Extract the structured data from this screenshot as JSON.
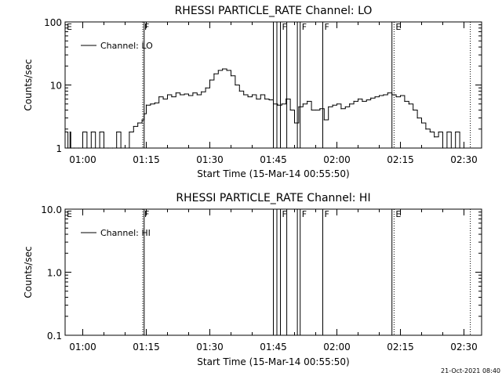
{
  "chart_data": [
    {
      "type": "line",
      "title": "RHESSI PARTICLE_RATE Channel: LO",
      "xlabel": "Start Time (15-Mar-14 00:55:50)",
      "ylabel": "Counts/sec",
      "y_scale": "log",
      "ylim": [
        1,
        100
      ],
      "xlim": [
        "00:55:50",
        "02:34:10"
      ],
      "y_ticks": [
        "1",
        "10",
        "100"
      ],
      "x_ticks": [
        "01:00",
        "01:15",
        "01:30",
        "01:45",
        "02:00",
        "02:15",
        "02:30"
      ],
      "legend": {
        "position": "top-left",
        "entries": [
          "Channel: LO"
        ]
      },
      "series": [
        {
          "name": "Channel: LO",
          "x": [
            "00:55:50",
            "00:56:00",
            "00:56:30",
            "00:57:00",
            "00:57:10",
            "00:58:00",
            "00:59:00",
            "01:00:00",
            "01:01:00",
            "01:02:00",
            "01:03:00",
            "01:04:00",
            "01:05:00",
            "01:06:00",
            "01:07:00",
            "01:08:00",
            "01:09:00",
            "01:10:00",
            "01:11:00",
            "01:12:00",
            "01:13:00",
            "01:14:00",
            "01:14:30",
            "01:15:00",
            "01:16:00",
            "01:17:00",
            "01:18:00",
            "01:19:00",
            "01:20:00",
            "01:21:00",
            "01:22:00",
            "01:23:00",
            "01:24:00",
            "01:25:00",
            "01:26:00",
            "01:27:00",
            "01:28:00",
            "01:29:00",
            "01:30:00",
            "01:31:00",
            "01:32:00",
            "01:33:00",
            "01:34:00",
            "01:35:00",
            "01:36:00",
            "01:37:00",
            "01:38:00",
            "01:39:00",
            "01:40:00",
            "01:41:00",
            "01:42:00",
            "01:43:00",
            "01:44:00",
            "01:45:00",
            "01:46:00",
            "01:47:00",
            "01:48:00",
            "01:49:00",
            "01:50:00",
            "01:51:00",
            "01:52:00",
            "01:53:00",
            "01:54:00",
            "01:55:00",
            "01:56:00",
            "01:57:00",
            "01:58:00",
            "01:59:00",
            "02:00:00",
            "02:01:00",
            "02:02:00",
            "02:03:00",
            "02:04:00",
            "02:05:00",
            "02:06:00",
            "02:07:00",
            "02:08:00",
            "02:09:00",
            "02:10:00",
            "02:11:00",
            "02:12:00",
            "02:13:00",
            "02:14:00",
            "02:15:00",
            "02:16:00",
            "02:17:00",
            "02:18:00",
            "02:19:00",
            "02:20:00",
            "02:21:00",
            "02:22:00",
            "02:23:00",
            "02:24:00",
            "02:25:00",
            "02:26:00",
            "02:27:00",
            "02:28:00",
            "02:29:00",
            "02:30:00"
          ],
          "y": [
            1.8,
            1.8,
            1,
            1.8,
            1,
            1,
            1,
            1.8,
            1,
            1.8,
            1,
            1.8,
            1,
            1,
            1,
            1.8,
            1,
            1,
            1.8,
            2.2,
            2.5,
            2.8,
            3.5,
            4.8,
            5,
            5.2,
            6.5,
            6,
            7,
            6.5,
            7.5,
            7,
            7.2,
            6.8,
            7.5,
            7,
            7.8,
            9,
            12,
            15,
            17,
            18,
            17,
            14,
            10,
            8,
            7,
            6.5,
            7,
            6,
            7,
            6,
            5.8,
            5,
            4.8,
            5,
            6,
            4,
            2.5,
            4.5,
            5,
            5.5,
            4,
            4,
            4.2,
            2.8,
            4.5,
            4.8,
            5,
            4.2,
            4.5,
            5,
            5.5,
            6,
            5.5,
            5.8,
            6.2,
            6.5,
            6.8,
            7,
            7.5,
            7,
            6.5,
            6.8,
            5.5,
            5,
            4,
            3,
            2.5,
            2,
            1.8,
            1.5,
            1.8,
            1,
            1.8,
            1,
            1.8,
            1,
            1
          ]
        }
      ],
      "vertical_markers": [
        {
          "time": "01:14:10",
          "label": "F",
          "style": "dotted"
        },
        {
          "time": "01:14:30",
          "label": "",
          "style": "solid"
        },
        {
          "time": "01:45:00",
          "label": "",
          "style": "solid"
        },
        {
          "time": "01:45:50",
          "label": "",
          "style": "solid"
        },
        {
          "time": "01:46:40",
          "label": "F",
          "style": "solid"
        },
        {
          "time": "01:48:10",
          "label": "",
          "style": "solid"
        },
        {
          "time": "01:50:40",
          "label": "",
          "style": "solid"
        },
        {
          "time": "01:51:20",
          "label": "F",
          "style": "solid"
        },
        {
          "time": "01:56:40",
          "label": "F",
          "style": "solid"
        },
        {
          "time": "02:13:00",
          "label": "",
          "style": "solid"
        },
        {
          "time": "02:13:30",
          "label": "E",
          "style": "dotted"
        },
        {
          "time": "02:31:30",
          "label": "",
          "style": "dotted"
        }
      ],
      "start_marker_label": "E"
    },
    {
      "type": "line",
      "title": "RHESSI PARTICLE_RATE Channel: HI",
      "xlabel": "Start Time (15-Mar-14 00:55:50)",
      "ylabel": "Counts/sec",
      "y_scale": "log",
      "ylim": [
        0.1,
        10.0
      ],
      "xlim": [
        "00:55:50",
        "02:34:10"
      ],
      "y_ticks": [
        "0.1",
        "1.0",
        "10.0"
      ],
      "x_ticks": [
        "01:00",
        "01:15",
        "01:30",
        "01:45",
        "02:00",
        "02:15",
        "02:30"
      ],
      "legend": {
        "position": "top-left",
        "entries": [
          "Channel: HI"
        ]
      },
      "series": [
        {
          "name": "Channel: HI",
          "x": [],
          "y": []
        }
      ],
      "vertical_markers": [
        {
          "time": "01:14:10",
          "label": "F",
          "style": "dotted"
        },
        {
          "time": "01:14:30",
          "label": "",
          "style": "solid"
        },
        {
          "time": "01:45:00",
          "label": "",
          "style": "solid"
        },
        {
          "time": "01:45:50",
          "label": "",
          "style": "solid"
        },
        {
          "time": "01:46:40",
          "label": "F",
          "style": "solid"
        },
        {
          "time": "01:48:10",
          "label": "",
          "style": "solid"
        },
        {
          "time": "01:50:40",
          "label": "",
          "style": "solid"
        },
        {
          "time": "01:51:20",
          "label": "F",
          "style": "solid"
        },
        {
          "time": "01:56:40",
          "label": "F",
          "style": "solid"
        },
        {
          "time": "02:13:00",
          "label": "",
          "style": "solid"
        },
        {
          "time": "02:13:30",
          "label": "E",
          "style": "dotted"
        },
        {
          "time": "02:31:30",
          "label": "",
          "style": "dotted"
        }
      ],
      "start_marker_label": "E"
    }
  ],
  "footer": {
    "timestamp": "21-Oct-2021 08:40"
  }
}
